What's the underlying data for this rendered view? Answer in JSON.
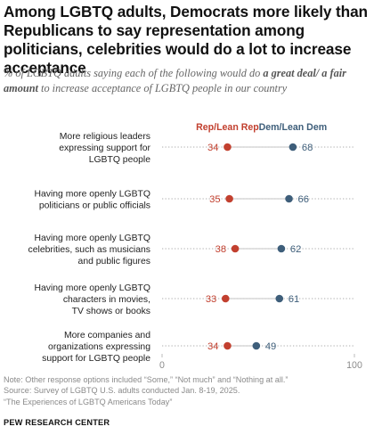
{
  "title": "Among LGBTQ adults, Democrats more likely than Republicans to say representation among politicians, celebrities would do a lot to increase acceptance",
  "subtitle": {
    "part1": "% of LGBTQ adults saying each of the following would do ",
    "emphasis": "a great deal/ a fair amount",
    "part2": " to increase acceptance of LGBTQ people in our country"
  },
  "colors": {
    "rep": "#c2402f",
    "dem": "#3e5e7a",
    "dots": "#bdbdbd",
    "text_grey": "#8a8a8a"
  },
  "chart_data": {
    "type": "dot",
    "categories": [
      [
        "More religious leaders",
        "expressing support for",
        "LGBTQ people"
      ],
      [
        "Having more openly LGBTQ",
        "politicians or public officials"
      ],
      [
        "Having more openly LGBTQ",
        "celebrities, such as musicians",
        "and public figures"
      ],
      [
        "Having more openly LGBTQ",
        "characters in movies,",
        "TV shows or books"
      ],
      [
        "More companies and",
        "organizations expressing",
        "support for LGBTQ people"
      ]
    ],
    "series": [
      {
        "name": "Rep/Lean Rep",
        "values": [
          34,
          35,
          38,
          33,
          34
        ]
      },
      {
        "name": "Dem/Lean Dem",
        "values": [
          68,
          66,
          62,
          61,
          49
        ]
      }
    ],
    "xlim": [
      0,
      100
    ],
    "xticks": [
      "0",
      "100"
    ]
  },
  "notes": [
    "Note: Other response options included “Some,” “Not much” and “Nothing at all.”",
    "Source: Survey of LGBTQ U.S. adults conducted Jan. 8-19, 2025.",
    "“The Experiences of LGBTQ Americans Today”"
  ],
  "brand": "PEW RESEARCH CENTER"
}
